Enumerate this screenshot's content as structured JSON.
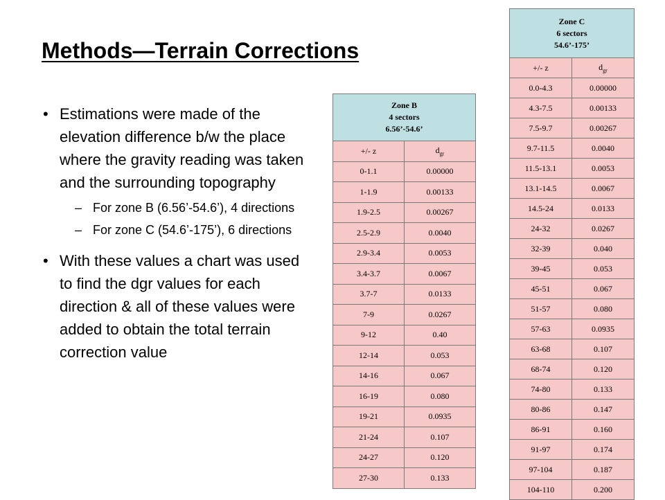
{
  "slide": {
    "title": "Methods—Terrain Corrections",
    "bullet1": "Estimations were made of the elevation difference b/w the place where the gravity reading was taken and the surrounding topography",
    "sub1": "For zone B (6.56’-54.6’), 4 directions",
    "sub2": "For zone C (54.6’-175’), 6 directions",
    "bullet2": "With these values a chart was used to find the dgr values for each direction & all of these values were added to obtain the total terrain correction value",
    "bullet_marker": "•",
    "sub_marker": "–"
  },
  "zoneB": {
    "name": "Zone B",
    "sectors": "4 sectors",
    "range": "6.56’-54.6’",
    "col1": "+/- z",
    "col2_main": "d",
    "col2_sub": "gr",
    "rows": [
      [
        "0-1.1",
        "0.00000"
      ],
      [
        "1-1.9",
        "0.00133"
      ],
      [
        "1.9-2.5",
        "0.00267"
      ],
      [
        "2.5-2.9",
        "0.0040"
      ],
      [
        "2.9-3.4",
        "0.0053"
      ],
      [
        "3.4-3.7",
        "0.0067"
      ],
      [
        "3.7-7",
        "0.0133"
      ],
      [
        "7-9",
        "0.0267"
      ],
      [
        "9-12",
        "0.40"
      ],
      [
        "12-14",
        "0.053"
      ],
      [
        "14-16",
        "0.067"
      ],
      [
        "16-19",
        "0.080"
      ],
      [
        "19-21",
        "0.0935"
      ],
      [
        "21-24",
        "0.107"
      ],
      [
        "24-27",
        "0.120"
      ],
      [
        "27-30",
        "0.133"
      ]
    ]
  },
  "zoneC": {
    "name": "Zone C",
    "sectors": "6 sectors",
    "range": "54.6’-175’",
    "col1": "+/- z",
    "col2_main": "d",
    "col2_sub": "gr",
    "rows": [
      [
        "0.0-4.3",
        "0.00000"
      ],
      [
        "4.3-7.5",
        "0.00133"
      ],
      [
        "7.5-9.7",
        "0.00267"
      ],
      [
        "9.7-11.5",
        "0.0040"
      ],
      [
        "11.5-13.1",
        "0.0053"
      ],
      [
        "13.1-14.5",
        "0.0067"
      ],
      [
        "14.5-24",
        "0.0133"
      ],
      [
        "24-32",
        "0.0267"
      ],
      [
        "32-39",
        "0.040"
      ],
      [
        "39-45",
        "0.053"
      ],
      [
        "45-51",
        "0.067"
      ],
      [
        "51-57",
        "0.080"
      ],
      [
        "57-63",
        "0.0935"
      ],
      [
        "63-68",
        "0.107"
      ],
      [
        "68-74",
        "0.120"
      ],
      [
        "74-80",
        "0.133"
      ],
      [
        "80-86",
        "0.147"
      ],
      [
        "86-91",
        "0.160"
      ],
      [
        "91-97",
        "0.174"
      ],
      [
        "97-104",
        "0.187"
      ],
      [
        "104-110",
        "0.200"
      ]
    ]
  }
}
